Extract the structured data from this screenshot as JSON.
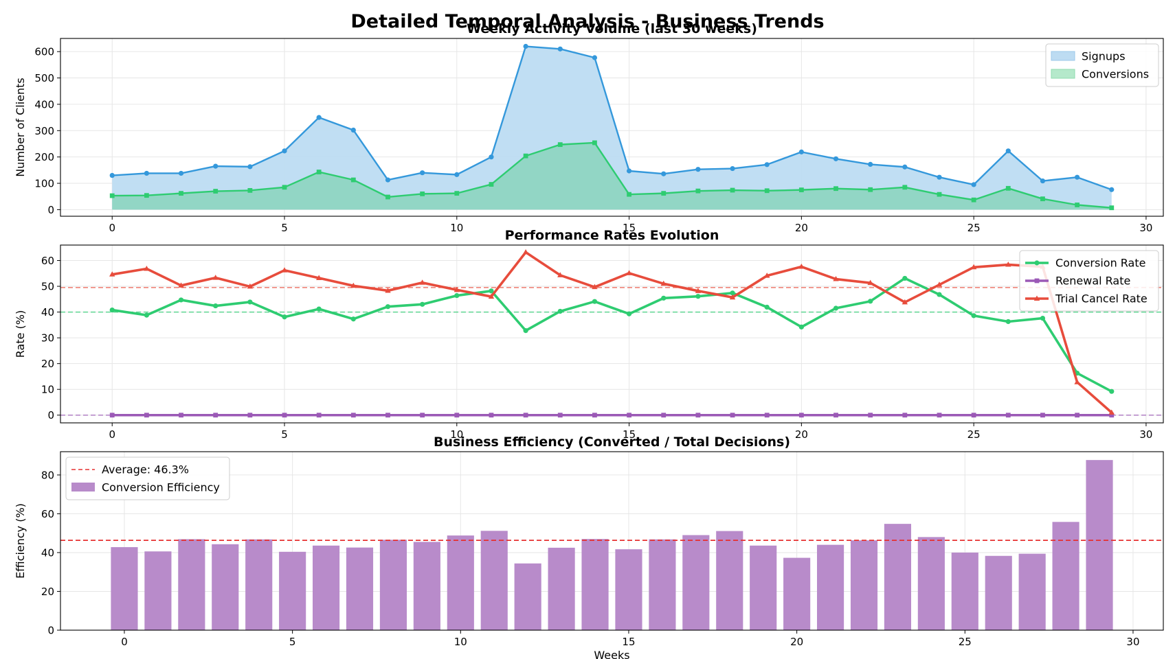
{
  "suptitle": "Detailed Temporal Analysis - Business Trends",
  "colors": {
    "signups": "#3498db",
    "signups_fill": "#bddcf2",
    "conversions": "#2ecc71",
    "conversions_fill": "#8fd5c2",
    "renewal": "#9b59b6",
    "cancel": "#e74c3c",
    "bar": "#b88bca",
    "avg_line": "#e63030",
    "grid": "#e6e6e6"
  },
  "chart_data": [
    {
      "type": "area",
      "title": "Weekly Activity Volume (last 30 weeks)",
      "xlabel": "",
      "ylabel": "Number of Clients",
      "xlim": [
        -1.5,
        30.5
      ],
      "ylim": [
        -25,
        650
      ],
      "xticks": [
        0,
        5,
        10,
        15,
        20,
        25,
        30
      ],
      "yticks": [
        0,
        100,
        200,
        300,
        400,
        500,
        600
      ],
      "grid": true,
      "legend_position": "top-right",
      "x": [
        0,
        1,
        2,
        3,
        4,
        5,
        6,
        7,
        8,
        9,
        10,
        11,
        12,
        13,
        14,
        15,
        16,
        17,
        18,
        19,
        20,
        21,
        22,
        23,
        24,
        25,
        26,
        27,
        28,
        29
      ],
      "series": [
        {
          "name": "Signups",
          "values": [
            130,
            138,
            138,
            165,
            163,
            223,
            350,
            302,
            113,
            140,
            133,
            200,
            620,
            610,
            577,
            147,
            136,
            153,
            156,
            171,
            219,
            193,
            172,
            162,
            123,
            95,
            223,
            109,
            123,
            76
          ]
        },
        {
          "name": "Conversions",
          "values": [
            53,
            54,
            62,
            70,
            73,
            85,
            143,
            113,
            48,
            60,
            62,
            96,
            204,
            247,
            254,
            58,
            62,
            71,
            74,
            72,
            75,
            80,
            76,
            85,
            58,
            37,
            81,
            41,
            18,
            7
          ]
        }
      ]
    },
    {
      "type": "line",
      "title": "Performance Rates Evolution",
      "xlabel": "",
      "ylabel": "Rate (%)",
      "xlim": [
        -1.5,
        30.5
      ],
      "ylim": [
        -3,
        66
      ],
      "xticks": [
        0,
        5,
        10,
        15,
        20,
        25,
        30
      ],
      "yticks": [
        0,
        10,
        20,
        30,
        40,
        50,
        60
      ],
      "grid": true,
      "legend_position": "top-right",
      "x": [
        0,
        1,
        2,
        3,
        4,
        5,
        6,
        7,
        8,
        9,
        10,
        11,
        12,
        13,
        14,
        15,
        16,
        17,
        18,
        19,
        20,
        21,
        22,
        23,
        24,
        25,
        26,
        27,
        28,
        29
      ],
      "reference_lines": [
        49.5,
        40,
        0
      ],
      "series": [
        {
          "name": "Conversion Rate",
          "values": [
            40.8,
            38.8,
            44.7,
            42.4,
            43.9,
            38.1,
            41.2,
            37.3,
            42.1,
            43.0,
            46.4,
            48.2,
            32.8,
            40.3,
            44.1,
            39.3,
            45.4,
            46.1,
            47.4,
            41.9,
            34.2,
            41.5,
            44.2,
            53.1,
            46.8,
            38.6,
            36.3,
            37.6,
            16.3,
            9.2
          ]
        },
        {
          "name": "Renewal Rate",
          "values": [
            0,
            0,
            0,
            0,
            0,
            0,
            0,
            0,
            0,
            0,
            0,
            0,
            0,
            0,
            0,
            0,
            0,
            0,
            0,
            0,
            0,
            0,
            0,
            0,
            0,
            0,
            0,
            0,
            0,
            0
          ]
        },
        {
          "name": "Trial Cancel Rate",
          "values": [
            54.6,
            56.8,
            50.3,
            53.3,
            49.9,
            56.2,
            53.2,
            50.2,
            48.3,
            51.4,
            48.6,
            46.0,
            63.2,
            54.3,
            49.7,
            55.1,
            51.0,
            48.2,
            45.7,
            54.1,
            57.6,
            52.8,
            51.3,
            43.8,
            50.6,
            57.4,
            58.4,
            57.6,
            12.8,
            1.0
          ]
        }
      ]
    },
    {
      "type": "bar",
      "title": "Business Efficiency (Converted / Total Decisions)",
      "xlabel": "Weeks",
      "ylabel": "Efficiency (%)",
      "xlim": [
        -1.9,
        30.9
      ],
      "ylim": [
        0,
        92
      ],
      "xticks": [
        0,
        5,
        10,
        15,
        20,
        25,
        30
      ],
      "yticks": [
        0,
        20,
        40,
        60,
        80
      ],
      "grid": true,
      "legend_position": "top-left",
      "average_label": "Average: 46.3%",
      "average": 46.3,
      "x": [
        0,
        1,
        2,
        3,
        4,
        5,
        6,
        7,
        8,
        9,
        10,
        11,
        12,
        13,
        14,
        15,
        16,
        17,
        18,
        19,
        20,
        21,
        22,
        23,
        24,
        25,
        26,
        27,
        28,
        29
      ],
      "series": [
        {
          "name": "Conversion Efficiency",
          "values": [
            42.8,
            40.6,
            46.9,
            44.3,
            46.8,
            40.4,
            43.6,
            42.6,
            46.6,
            45.5,
            48.8,
            51.2,
            34.4,
            42.5,
            47.0,
            41.7,
            46.8,
            49.0,
            51.1,
            43.6,
            37.3,
            44.0,
            46.3,
            54.8,
            48.0,
            40.0,
            38.3,
            39.4,
            55.8,
            87.7
          ]
        }
      ]
    }
  ]
}
